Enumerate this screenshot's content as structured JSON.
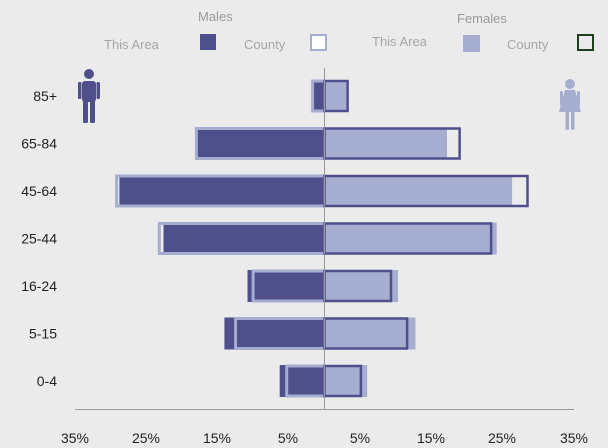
{
  "legend": {
    "males_title": "Males",
    "females_title": "Females",
    "this_area_label": "This Area",
    "county_label": "County"
  },
  "colors": {
    "male_fill": "#4f4f8c",
    "male_county_outline": "#a5aed0",
    "female_fill": "#a5aed0",
    "female_county_outline": "#4f4f8c",
    "legend_female_county_box": "#1f3f1f",
    "axis": "#999999",
    "background": "#ebebeb"
  },
  "icons": {
    "male": "male-person-icon",
    "female": "female-person-icon"
  },
  "chart_data": {
    "type": "bar",
    "orientation": "horizontal",
    "layout": "population-pyramid",
    "categories": [
      "0-4",
      "5-15",
      "16-24",
      "25-44",
      "45-64",
      "65-84",
      "85+"
    ],
    "x_tick_labels": [
      "35%",
      "25%",
      "15%",
      "5%",
      "5%",
      "15%",
      "25%",
      "35%"
    ],
    "xlim": [
      -35,
      35
    ],
    "series": [
      {
        "name": "Males This Area",
        "values": [
          6.4,
          14.3,
          11.0,
          23.0,
          29.3,
          18.5,
          1.8
        ]
      },
      {
        "name": "Males County",
        "values": [
          5.4,
          12.7,
          10.2,
          23.6,
          29.7,
          18.3,
          1.7
        ]
      },
      {
        "name": "Females This Area",
        "values": [
          6.1,
          13.0,
          10.5,
          24.6,
          26.8,
          17.5,
          3.3
        ]
      },
      {
        "name": "Females County",
        "values": [
          5.2,
          11.8,
          9.5,
          23.8,
          29.0,
          19.3,
          3.3
        ]
      }
    ],
    "legend_position": "top",
    "grid": false
  }
}
